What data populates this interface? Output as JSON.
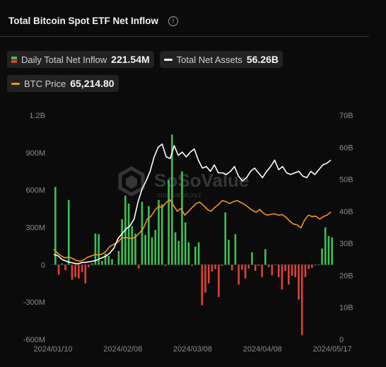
{
  "header": {
    "title": "Total Bitcoin Spot ETF Net Inflow",
    "info_icon": "info-icon"
  },
  "legend": {
    "daily": {
      "label": "Daily Total Net Inflow",
      "value": "221.54M",
      "color_pos": "#3fbf55",
      "color_neg": "#e0403a"
    },
    "assets": {
      "label": "Total Net Assets",
      "value": "56.26B",
      "color": "#ffffff"
    },
    "btc": {
      "label": "BTC Price",
      "value": "65,214.80",
      "color": "#f7931a"
    }
  },
  "watermark": {
    "text": "SoSoValue",
    "sub": "sosovalue.xyz"
  },
  "chart_data": {
    "type": "bar",
    "x_ticks": [
      "2024/01/10",
      "2024/02/08",
      "2024/03/08",
      "2024/04/08",
      "2024/05/17"
    ],
    "y_left": {
      "ticks": [
        "1.2B",
        "900M",
        "600M",
        "300M",
        "0",
        "-300M",
        "-600M"
      ],
      "range": [
        -600,
        1200
      ],
      "unit": "M"
    },
    "y_right": {
      "ticks": [
        "70B",
        "60B",
        "50B",
        "40B",
        "30B",
        "20B",
        "10B",
        "0"
      ],
      "range": [
        0,
        70
      ],
      "unit": "B"
    },
    "series": [
      {
        "name": "Daily Total Net Inflow",
        "type": "bar",
        "values": [
          625,
          -80,
          10,
          -45,
          520,
          -120,
          -100,
          -110,
          -60,
          -150,
          -20,
          10,
          250,
          245,
          30,
          90,
          70,
          45,
          0,
          110,
          365,
          555,
          490,
          310,
          250,
          -30,
          505,
          240,
          470,
          220,
          280,
          520,
          485,
          -10,
          680,
          1045,
          260,
          190,
          750,
          340,
          180,
          -10,
          145,
          180,
          -325,
          -225,
          -150,
          -55,
          -35,
          -260,
          -10,
          420,
          200,
          -45,
          245,
          -160,
          -40,
          -110,
          -30,
          100,
          -50,
          -10,
          -100,
          125,
          -20,
          -85,
          0,
          -100,
          -200,
          -50,
          -160,
          -90,
          -100,
          -280,
          -565,
          -100,
          -35,
          -25,
          -5,
          0,
          130,
          300,
          230,
          220
        ]
      },
      {
        "name": "Total Net Assets",
        "type": "line",
        "values": [
          26.5,
          26.2,
          25.0,
          24.5,
          24.1,
          23.8,
          23.6,
          24.0,
          24.1,
          24.3,
          24.5,
          24.9,
          25.5,
          26.0,
          27.0,
          28.5,
          31.5,
          33.0,
          34.5,
          35.5,
          37.5,
          43.0,
          47.0,
          49.5,
          52.5,
          57.0,
          60.0,
          61.0,
          57.0,
          56.5,
          60.5,
          57.5,
          58.5,
          57.0,
          58.5,
          59.5,
          56.0,
          53.5,
          54.0,
          52.5,
          54.5,
          52.0,
          52.0,
          51.5,
          52.5,
          54.0,
          51.0,
          49.5,
          50.5,
          52.5,
          53.5,
          52.0,
          50.5,
          52.5,
          54.0,
          56.0,
          53.0,
          54.0,
          52.0,
          51.5,
          52.0,
          52.5,
          51.0,
          50.5,
          52.5,
          51.5,
          53.0,
          54.5,
          55.0,
          56.0
        ],
        "color": "#ffffff"
      },
      {
        "name": "BTC Price",
        "type": "line",
        "values": [
          46000,
          44000,
          42500,
          41500,
          42000,
          41200,
          40200,
          39800,
          40500,
          41800,
          42500,
          43200,
          43000,
          43500,
          45000,
          47500,
          48500,
          49500,
          51500,
          52000,
          51800,
          51500,
          52500,
          54500,
          57000,
          61500,
          63000,
          66000,
          68000,
          67500,
          70000,
          71500,
          68500,
          65500,
          67000,
          63500,
          65500,
          67500,
          69500,
          70200,
          68500,
          66500,
          65500,
          67500,
          69000,
          71000,
          70500,
          69500,
          70500,
          71000,
          70000,
          69000,
          67500,
          66000,
          65000,
          66500,
          64500,
          63500,
          64000,
          64200,
          63500,
          63800,
          62500,
          60500,
          59000,
          58500,
          57000,
          61000,
          63500,
          62800,
          63000,
          61500,
          62800,
          63500,
          65214
        ],
        "color": "#f7931a"
      }
    ]
  }
}
